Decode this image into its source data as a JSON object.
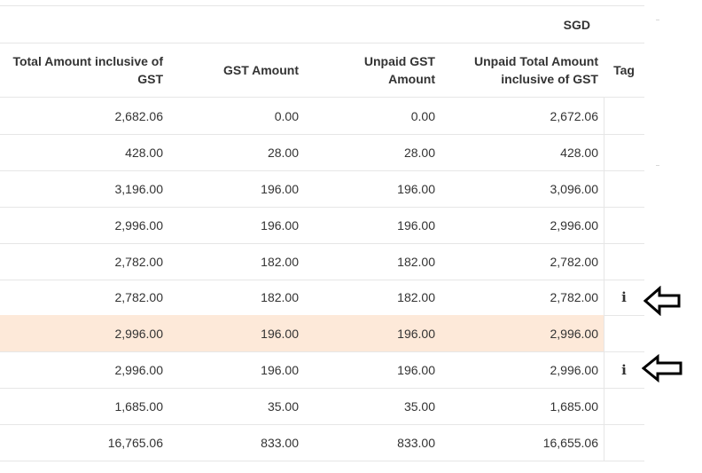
{
  "currency_label": "SGD",
  "columns": {
    "total_amount": "Total Amount inclusive of GST",
    "gst_amount": "GST Amount",
    "unpaid_gst": "Unpaid GST Amount",
    "unpaid_total": "Unpaid Total Amount inclusive of GST",
    "tag": "Tag"
  },
  "rows": [
    {
      "total": "2,682.06",
      "gst": "0.00",
      "unpaid_gst": "0.00",
      "unpaid_total": "2,672.06",
      "tag": ""
    },
    {
      "total": "428.00",
      "gst": "28.00",
      "unpaid_gst": "28.00",
      "unpaid_total": "428.00",
      "tag": ""
    },
    {
      "total": "3,196.00",
      "gst": "196.00",
      "unpaid_gst": "196.00",
      "unpaid_total": "3,096.00",
      "tag": ""
    },
    {
      "total": "2,996.00",
      "gst": "196.00",
      "unpaid_gst": "196.00",
      "unpaid_total": "2,996.00",
      "tag": ""
    },
    {
      "total": "2,782.00",
      "gst": "182.00",
      "unpaid_gst": "182.00",
      "unpaid_total": "2,782.00",
      "tag": ""
    },
    {
      "total": "2,782.00",
      "gst": "182.00",
      "unpaid_gst": "182.00",
      "unpaid_total": "2,782.00",
      "tag": "i"
    },
    {
      "total": "2,996.00",
      "gst": "196.00",
      "unpaid_gst": "196.00",
      "unpaid_total": "2,996.00",
      "tag": ""
    },
    {
      "total": "2,996.00",
      "gst": "196.00",
      "unpaid_gst": "196.00",
      "unpaid_total": "2,996.00",
      "tag": "i"
    },
    {
      "total": "1,685.00",
      "gst": "35.00",
      "unpaid_gst": "35.00",
      "unpaid_total": "1,685.00",
      "tag": ""
    }
  ],
  "totals": {
    "total": "16,765.06",
    "gst": "833.00",
    "unpaid_gst": "833.00",
    "unpaid_total": "16,655.06"
  },
  "colors": {
    "highlight_row": "#fde9d9",
    "border": "#e6e6e6"
  },
  "icons": {
    "info": "info-icon",
    "arrow": "left-arrow-annotation"
  }
}
